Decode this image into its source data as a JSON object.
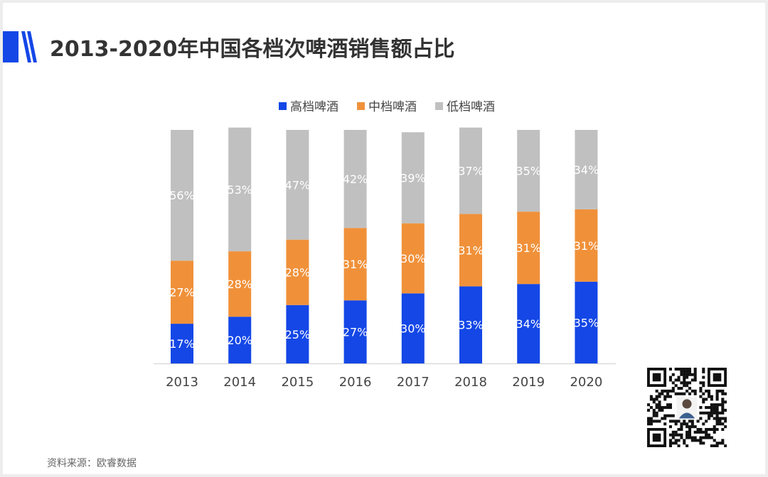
{
  "page": {
    "title": "2013-2020年中国各档次啤酒销售额占比",
    "source": "资料来源：欧睿数据",
    "qr_label": "二维码"
  },
  "colors": {
    "high": "#1447e6",
    "mid": "#f0913a",
    "low": "#c0c0c0",
    "title_accent": "#1447e6"
  },
  "chart_data": {
    "type": "bar",
    "stacked": true,
    "percent": true,
    "title": "2013-2020年中国各档次啤酒销售额占比",
    "xlabel": "",
    "ylabel": "",
    "ylim": [
      0,
      100
    ],
    "grid": false,
    "legend_position": "top-center",
    "categories": [
      "2013",
      "2014",
      "2015",
      "2016",
      "2017",
      "2018",
      "2019",
      "2020"
    ],
    "series": [
      {
        "name": "高档啤酒",
        "color": "#1447e6",
        "values": [
          17,
          20,
          25,
          27,
          30,
          33,
          34,
          35
        ],
        "labels": [
          "17%",
          "20%",
          "25%",
          "27%",
          "30%",
          "33%",
          "34%",
          "35%"
        ]
      },
      {
        "name": "中档啤酒",
        "color": "#f0913a",
        "values": [
          27,
          28,
          28,
          31,
          30,
          31,
          31,
          31
        ],
        "labels": [
          "27%",
          "28%",
          "28%",
          "31%",
          "30%",
          "31%",
          "31%",
          "31%"
        ]
      },
      {
        "name": "低档啤酒",
        "color": "#c0c0c0",
        "values": [
          56,
          53,
          47,
          42,
          39,
          37,
          35,
          34
        ],
        "labels": [
          "56%",
          "53%",
          "47%",
          "42%",
          "39%",
          "37%",
          "35%",
          "34%"
        ]
      }
    ]
  }
}
